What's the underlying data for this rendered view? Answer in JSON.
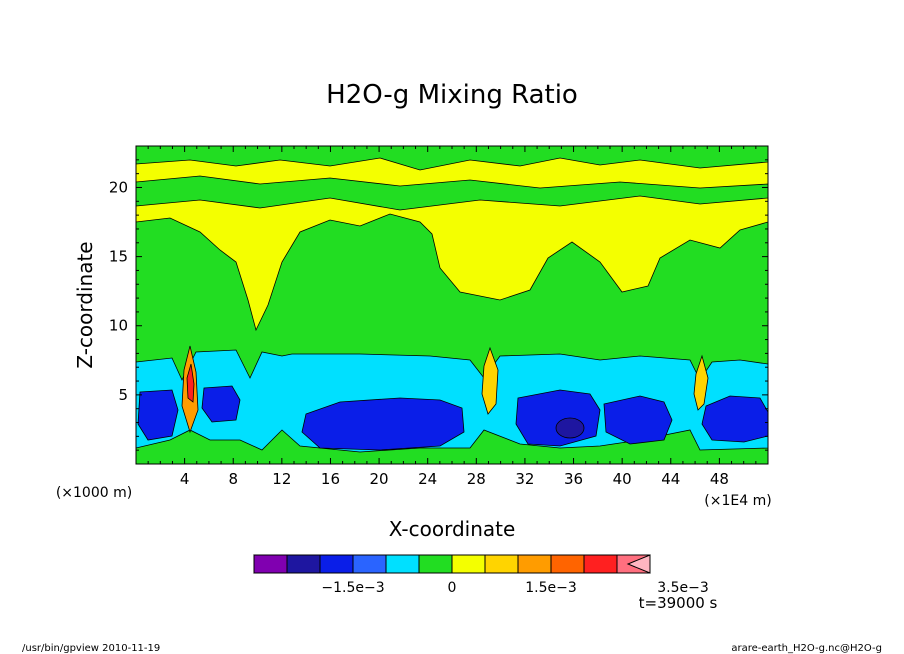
{
  "chart_data": {
    "type": "heatmap",
    "title": "H2O-g Mixing Ratio",
    "xlabel": "X-coordinate",
    "ylabel": "Z-coordinate",
    "x_unit": "(×1E4 m)",
    "y_unit": "(×1000 m)",
    "xlim": [
      0,
      52
    ],
    "ylim": [
      0,
      23
    ],
    "x_ticks": [
      "4",
      "8",
      "12",
      "16",
      "20",
      "24",
      "28",
      "32",
      "36",
      "40",
      "44",
      "48"
    ],
    "y_ticks": [
      "5",
      "10",
      "15",
      "20"
    ],
    "x_tick_values": [
      4,
      8,
      12,
      16,
      20,
      24,
      28,
      32,
      36,
      40,
      44,
      48
    ],
    "y_tick_values": [
      5,
      10,
      15,
      20
    ],
    "colorbar": {
      "levels": [
        -0.003,
        -0.0025,
        -0.002,
        -0.0015,
        -0.001,
        -0.0005,
        0,
        0.0005,
        0.001,
        0.0015,
        0.002,
        0.0025,
        0.003,
        0.0035
      ],
      "colors": [
        "#cc00cc",
        "#8000b0",
        "#1e16a0",
        "#0a1ee8",
        "#2a64ff",
        "#00e0ff",
        "#22dd22",
        "#f4ff00",
        "#ffd400",
        "#ff9c00",
        "#ff6400",
        "#ff2020",
        "#ff6f7f",
        "#ffb6c1"
      ],
      "labels": [
        "−1.5e−3",
        "0",
        "1.5e−3",
        "3.5e−3"
      ],
      "label_values": [
        -0.0015,
        0,
        0.0015,
        0.0035
      ]
    },
    "grid": false
  },
  "annotations": {
    "time": "t=39000 s",
    "footer_left": "/usr/bin/gpview   2010-11-19",
    "footer_right": "arare-earth_H2O-g.nc@H2O-g"
  }
}
